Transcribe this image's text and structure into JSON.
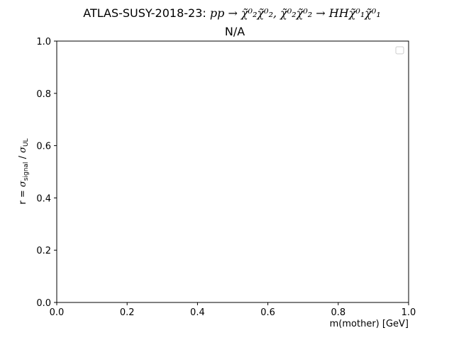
{
  "chart_data": {
    "type": "line",
    "title_prefix": "ATLAS-SUSY-2018-23: ",
    "title_process": "pp → χ̃⁰₂χ̃⁰₂, χ̃⁰₂χ̃⁰₂ → HHχ̃⁰₁χ̃⁰₁",
    "subtitle": "N/A",
    "xlabel": "m(mother) [GeV]",
    "ylabel": "r = σsignal / σUL",
    "ylabel_parts": {
      "lhs": "r = ",
      "sym1": "σ",
      "sub1": "signal",
      "sep": " / ",
      "sym2": "σ",
      "sub2": "UL"
    },
    "xlim": [
      0.0,
      1.0
    ],
    "ylim": [
      0.0,
      1.0
    ],
    "x_ticks": [
      "0.0",
      "0.2",
      "0.4",
      "0.6",
      "0.8",
      "1.0"
    ],
    "y_ticks": [
      "0.0",
      "0.2",
      "0.4",
      "0.6",
      "0.8",
      "1.0"
    ],
    "series": [],
    "grid": false,
    "legend": {
      "placement": "top-right",
      "entries": []
    }
  }
}
